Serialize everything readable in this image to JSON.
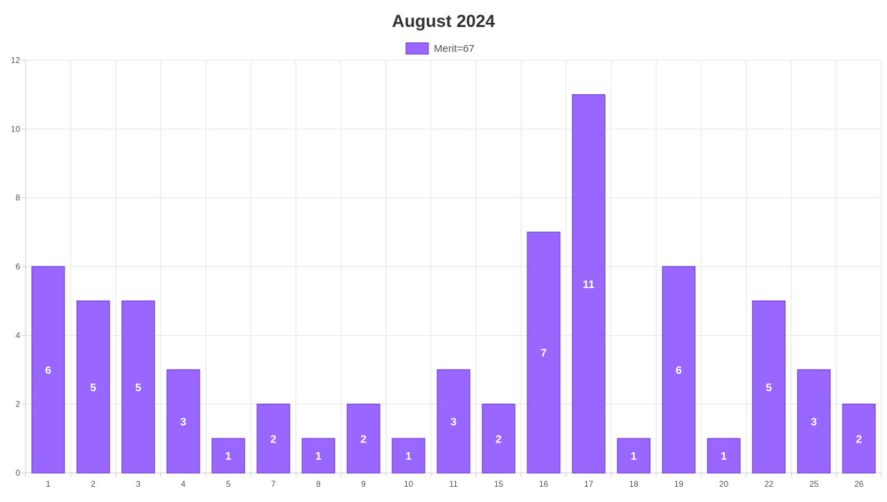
{
  "chart_data": {
    "type": "bar",
    "title": "August 2024",
    "xlabel": "",
    "ylabel": "",
    "ylim": [
      0,
      12
    ],
    "yticks": [
      0,
      2,
      4,
      6,
      8,
      10,
      12
    ],
    "grid": true,
    "legend_position": "top",
    "categories": [
      "1",
      "2",
      "3",
      "4",
      "5",
      "7",
      "8",
      "9",
      "10",
      "11",
      "15",
      "16",
      "17",
      "18",
      "19",
      "20",
      "22",
      "25",
      "26"
    ],
    "series": [
      {
        "name": "Merit=67",
        "color": "#9966ff",
        "border_color": "#7c4fd6",
        "values": [
          6,
          5,
          5,
          3,
          1,
          2,
          1,
          2,
          1,
          3,
          2,
          7,
          11,
          1,
          6,
          1,
          5,
          3,
          2
        ]
      }
    ]
  }
}
